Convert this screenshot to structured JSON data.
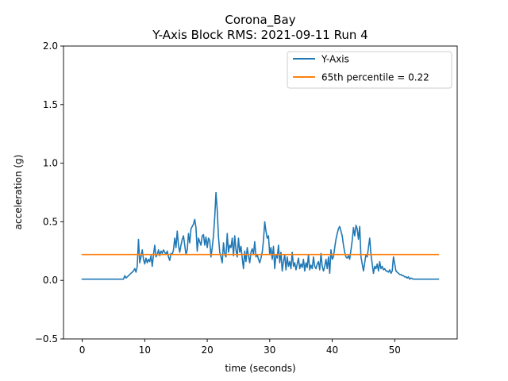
{
  "chart_data": {
    "type": "line",
    "title": "Corona_Bay",
    "subtitle": "Y-Axis Block RMS: 2021-09-11 Run 4",
    "xlabel": "time (seconds)",
    "ylabel": "acceleration (g)",
    "xlim": [
      -3,
      60
    ],
    "ylim": [
      -0.5,
      2.0
    ],
    "x_ticks": [
      0,
      10,
      20,
      30,
      40,
      50
    ],
    "x_tick_labels": [
      "0",
      "10",
      "20",
      "30",
      "40",
      "50"
    ],
    "y_ticks": [
      -0.5,
      0.0,
      0.5,
      1.0,
      1.5,
      2.0
    ],
    "y_tick_labels": [
      "−0.5",
      "0.0",
      "0.5",
      "1.0",
      "1.5",
      "2.0"
    ],
    "grid": false,
    "legend_position": "upper right",
    "series": [
      {
        "name": "Y-Axis",
        "color": "#1f77b4",
        "x": [
          0,
          2,
          4,
          6,
          6.6,
          6.8,
          7.0,
          7.2,
          7.4,
          7.6,
          7.8,
          8.0,
          8.2,
          8.4,
          8.6,
          8.8,
          9.0,
          9.2,
          9.4,
          9.6,
          9.8,
          10.0,
          10.2,
          10.4,
          10.6,
          10.8,
          11.0,
          11.2,
          11.4,
          11.6,
          11.8,
          12.0,
          12.2,
          12.4,
          12.6,
          12.8,
          13.0,
          13.2,
          13.4,
          13.6,
          13.8,
          14.0,
          14.2,
          14.4,
          14.6,
          14.8,
          15.0,
          15.2,
          15.4,
          15.6,
          15.8,
          16.0,
          16.2,
          16.4,
          16.6,
          16.8,
          17.0,
          17.2,
          17.4,
          17.6,
          17.8,
          18.0,
          18.2,
          18.4,
          18.6,
          18.8,
          19.0,
          19.2,
          19.4,
          19.6,
          19.8,
          20.0,
          20.2,
          20.4,
          20.6,
          20.8,
          21.0,
          21.2,
          21.4,
          21.6,
          21.8,
          22.0,
          22.2,
          22.4,
          22.6,
          22.8,
          23.0,
          23.2,
          23.4,
          23.6,
          23.8,
          24.0,
          24.2,
          24.4,
          24.6,
          24.8,
          25.0,
          25.2,
          25.4,
          25.6,
          25.8,
          26.0,
          26.2,
          26.4,
          26.6,
          26.8,
          27.0,
          27.2,
          27.4,
          27.6,
          27.8,
          28.0,
          28.2,
          28.4,
          28.6,
          28.8,
          29.0,
          29.2,
          29.4,
          29.6,
          29.8,
          30.0,
          30.2,
          30.4,
          30.6,
          30.8,
          31.0,
          31.2,
          31.4,
          31.6,
          31.8,
          32.0,
          32.2,
          32.4,
          32.6,
          32.8,
          33.0,
          33.2,
          33.4,
          33.6,
          33.8,
          34.0,
          34.2,
          34.4,
          34.6,
          34.8,
          35.0,
          35.2,
          35.4,
          35.6,
          35.8,
          36.0,
          36.2,
          36.4,
          36.6,
          36.8,
          37.0,
          37.2,
          37.4,
          37.6,
          37.8,
          38.0,
          38.2,
          38.4,
          38.6,
          38.8,
          39.0,
          39.2,
          39.4,
          39.6,
          39.8,
          40.0,
          40.2,
          40.4,
          40.6,
          40.8,
          41.0,
          41.2,
          41.4,
          41.6,
          41.8,
          42.0,
          42.2,
          42.4,
          42.6,
          42.8,
          43.0,
          43.2,
          43.4,
          43.6,
          43.8,
          44.0,
          44.2,
          44.4,
          44.6,
          44.8,
          45.0,
          45.2,
          45.4,
          45.6,
          45.8,
          46.0,
          46.2,
          46.4,
          46.6,
          46.8,
          47.0,
          47.2,
          47.4,
          47.6,
          47.8,
          48.0,
          48.2,
          48.4,
          48.6,
          48.8,
          49.0,
          49.2,
          49.4,
          49.6,
          49.8,
          50.0,
          50.2,
          50.4,
          50.6,
          50.8,
          51.0,
          51.2,
          51.4,
          51.6,
          51.8,
          52.0,
          52.2,
          52.4,
          52.6,
          53.0,
          54.0,
          55.0,
          56.0,
          57.0
        ],
        "y": [
          0.01,
          0.01,
          0.01,
          0.01,
          0.01,
          0.04,
          0.02,
          0.03,
          0.04,
          0.05,
          0.06,
          0.07,
          0.08,
          0.1,
          0.07,
          0.12,
          0.35,
          0.15,
          0.2,
          0.26,
          0.18,
          0.14,
          0.19,
          0.15,
          0.18,
          0.16,
          0.21,
          0.12,
          0.22,
          0.3,
          0.2,
          0.22,
          0.26,
          0.21,
          0.25,
          0.23,
          0.26,
          0.24,
          0.22,
          0.25,
          0.2,
          0.17,
          0.23,
          0.22,
          0.26,
          0.36,
          0.28,
          0.42,
          0.3,
          0.24,
          0.3,
          0.35,
          0.38,
          0.3,
          0.22,
          0.26,
          0.4,
          0.32,
          0.44,
          0.46,
          0.48,
          0.52,
          0.45,
          0.25,
          0.36,
          0.33,
          0.3,
          0.38,
          0.39,
          0.3,
          0.37,
          0.28,
          0.36,
          0.34,
          0.2,
          0.28,
          0.38,
          0.54,
          0.75,
          0.6,
          0.37,
          0.24,
          0.2,
          0.15,
          0.32,
          0.22,
          0.2,
          0.4,
          0.24,
          0.3,
          0.28,
          0.36,
          0.21,
          0.38,
          0.26,
          0.2,
          0.36,
          0.24,
          0.29,
          0.19,
          0.1,
          0.25,
          0.16,
          0.28,
          0.21,
          0.15,
          0.24,
          0.27,
          0.22,
          0.33,
          0.2,
          0.22,
          0.18,
          0.15,
          0.19,
          0.24,
          0.34,
          0.5,
          0.42,
          0.36,
          0.38,
          0.22,
          0.28,
          0.18,
          0.29,
          0.1,
          0.22,
          0.19,
          0.3,
          0.15,
          0.24,
          0.08,
          0.16,
          0.22,
          0.09,
          0.2,
          0.12,
          0.16,
          0.1,
          0.24,
          0.12,
          0.15,
          0.09,
          0.14,
          0.19,
          0.1,
          0.14,
          0.11,
          0.18,
          0.08,
          0.15,
          0.11,
          0.22,
          0.09,
          0.13,
          0.1,
          0.2,
          0.12,
          0.1,
          0.14,
          0.16,
          0.09,
          0.23,
          0.12,
          0.08,
          0.12,
          0.18,
          0.1,
          0.2,
          0.06,
          0.26,
          0.18,
          0.2,
          0.28,
          0.35,
          0.4,
          0.44,
          0.46,
          0.42,
          0.38,
          0.3,
          0.24,
          0.2,
          0.19,
          0.21,
          0.18,
          0.26,
          0.34,
          0.45,
          0.38,
          0.47,
          0.44,
          0.35,
          0.46,
          0.2,
          0.14,
          0.08,
          0.15,
          0.22,
          0.2,
          0.28,
          0.36,
          0.22,
          0.14,
          0.06,
          0.12,
          0.1,
          0.14,
          0.08,
          0.16,
          0.1,
          0.12,
          0.09,
          0.1,
          0.08,
          0.08,
          0.07,
          0.09,
          0.06,
          0.08,
          0.2,
          0.14,
          0.08,
          0.07,
          0.06,
          0.05,
          0.05,
          0.04,
          0.04,
          0.03,
          0.03,
          0.02,
          0.03,
          0.01,
          0.02,
          0.01,
          0.01,
          0.01,
          0.01,
          0.01
        ]
      },
      {
        "name": "65th percentile = 0.22",
        "color": "#ff7f0e",
        "x": [
          0,
          57
        ],
        "y": [
          0.22,
          0.22
        ]
      }
    ]
  }
}
